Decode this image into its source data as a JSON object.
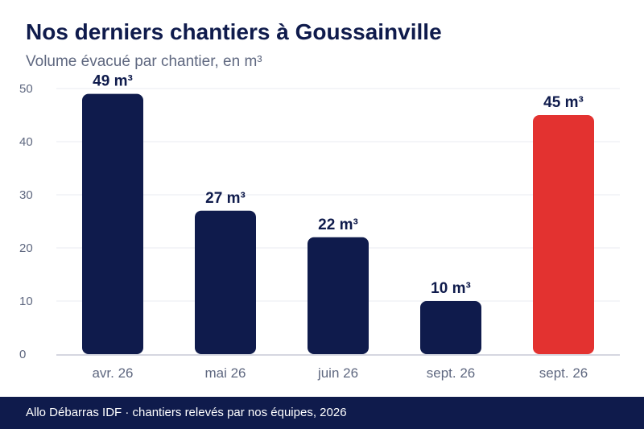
{
  "header": {
    "title": "Nos derniers chantiers à Goussainville",
    "subtitle": "Volume évacué par chantier, en m³"
  },
  "footer": {
    "text": "Allo Débarras IDF · chantiers relevés par nos équipes, 2026"
  },
  "colors": {
    "primary": "#0f1b4c",
    "highlight": "#e33230",
    "axis_text": "#5f6880",
    "grid": "#e9ebf0"
  },
  "chart_data": {
    "type": "bar",
    "categories": [
      "avr. 26",
      "mai 26",
      "juin 26",
      "sept. 26",
      "sept. 26"
    ],
    "values": [
      49,
      27,
      22,
      10,
      45
    ],
    "data_labels": [
      "49 m³",
      "27 m³",
      "22 m³",
      "10 m³",
      "45 m³"
    ],
    "highlight_index": 4,
    "ylim": [
      0,
      50
    ],
    "yticks": [
      0,
      10,
      20,
      30,
      40,
      50
    ],
    "grid": true,
    "xlabel": "",
    "ylabel": ""
  }
}
